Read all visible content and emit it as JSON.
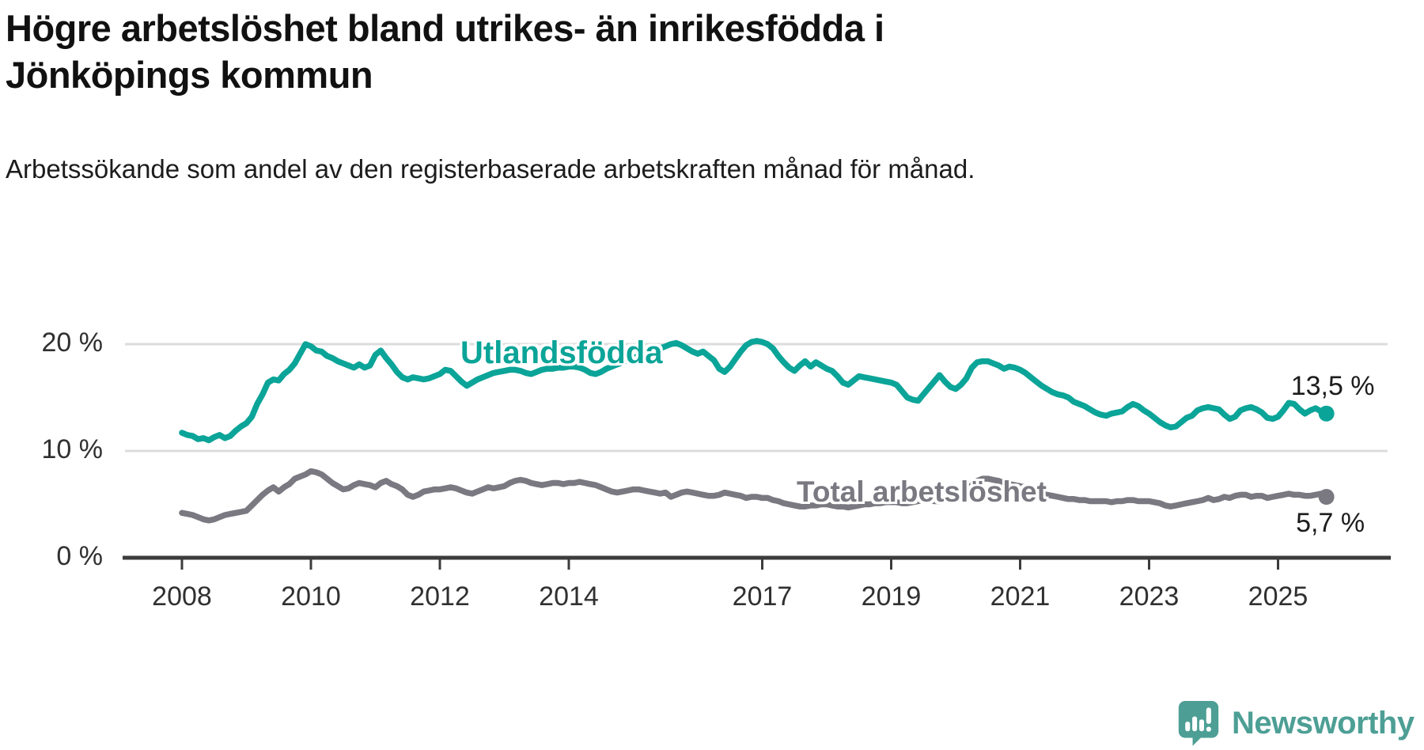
{
  "title": {
    "text": "Högre arbetslöshet bland utrikes- än inrikesfödda i Jönköpings kommun"
  },
  "subtitle": {
    "text": "Arbetssökande som andel av den registerbaserade arbetskraften månad för månad."
  },
  "chart_data": {
    "type": "line",
    "x_start": "2008-01",
    "x_end": "2025-10",
    "x_step_months": 1,
    "x_tick_years": [
      2008,
      2010,
      2012,
      2014,
      2017,
      2019,
      2021,
      2023,
      2025
    ],
    "y_ticks": [
      {
        "value": 0,
        "label": "0 %"
      },
      {
        "value": 10,
        "label": "10 %"
      },
      {
        "value": 20,
        "label": "20 %"
      }
    ],
    "ylim": [
      0,
      22
    ],
    "grid": "horizontal",
    "legend_position": "inline-labels",
    "colors": {
      "accent_teal": "#0ba498",
      "neutral_gray": "#7a7880",
      "gridline": "#dcdcdc",
      "axis": "#3c3c3c"
    },
    "series": [
      {
        "name": "Utlandsfödda",
        "color": "#0ba498",
        "end_label": "13,5 %",
        "end_value": 13.5,
        "values": [
          11.7,
          11.5,
          11.4,
          11.1,
          11.2,
          11.0,
          11.3,
          11.5,
          11.2,
          11.4,
          11.9,
          12.3,
          12.6,
          13.2,
          14.4,
          15.3,
          16.4,
          16.7,
          16.6,
          17.2,
          17.6,
          18.2,
          19.1,
          20.0,
          19.8,
          19.4,
          19.3,
          18.9,
          18.7,
          18.4,
          18.2,
          18.0,
          17.8,
          18.1,
          17.8,
          18.0,
          19.0,
          19.4,
          18.7,
          18.1,
          17.4,
          16.9,
          16.7,
          16.9,
          16.8,
          16.7,
          16.8,
          17.0,
          17.2,
          17.6,
          17.5,
          17.0,
          16.5,
          16.1,
          16.4,
          16.7,
          16.9,
          17.1,
          17.3,
          17.4,
          17.5,
          17.6,
          17.6,
          17.5,
          17.3,
          17.2,
          17.4,
          17.6,
          17.7,
          17.7,
          17.8,
          17.8,
          17.9,
          17.9,
          17.8,
          17.6,
          17.3,
          17.2,
          17.4,
          17.7,
          17.9,
          18.1,
          18.3,
          18.5,
          18.7,
          18.9,
          19.1,
          19.3,
          19.4,
          19.6,
          19.8,
          20.0,
          20.1,
          19.9,
          19.6,
          19.3,
          19.1,
          19.3,
          18.9,
          18.5,
          17.7,
          17.4,
          17.9,
          18.6,
          19.3,
          19.9,
          20.2,
          20.3,
          20.2,
          20.0,
          19.6,
          18.9,
          18.3,
          17.8,
          17.5,
          18.0,
          18.4,
          17.9,
          18.3,
          18.0,
          17.7,
          17.5,
          17.0,
          16.4,
          16.2,
          16.6,
          17.0,
          16.9,
          16.8,
          16.7,
          16.6,
          16.5,
          16.4,
          16.2,
          15.6,
          15.0,
          14.8,
          14.7,
          15.3,
          15.9,
          16.5,
          17.1,
          16.5,
          16.0,
          15.8,
          16.2,
          16.8,
          17.8,
          18.3,
          18.4,
          18.4,
          18.2,
          18.0,
          17.7,
          17.9,
          17.8,
          17.6,
          17.3,
          16.9,
          16.5,
          16.1,
          15.8,
          15.5,
          15.3,
          15.2,
          15.0,
          14.6,
          14.4,
          14.2,
          13.9,
          13.6,
          13.4,
          13.3,
          13.5,
          13.6,
          13.7,
          14.1,
          14.4,
          14.2,
          13.8,
          13.5,
          13.1,
          12.7,
          12.4,
          12.2,
          12.3,
          12.7,
          13.1,
          13.3,
          13.8,
          14.0,
          14.1,
          14.0,
          13.9,
          13.4,
          13.0,
          13.2,
          13.8,
          14.0,
          14.1,
          13.9,
          13.6,
          13.1,
          13.0,
          13.2,
          13.8,
          14.5,
          14.4,
          13.9,
          13.5,
          13.8,
          14.0,
          13.7,
          13.5
        ]
      },
      {
        "name": "Total arbetslöshet",
        "color": "#7a7880",
        "end_label": "5,7 %",
        "end_value": 5.7,
        "values": [
          4.2,
          4.1,
          4.0,
          3.8,
          3.6,
          3.5,
          3.6,
          3.8,
          4.0,
          4.1,
          4.2,
          4.3,
          4.4,
          4.9,
          5.4,
          5.9,
          6.3,
          6.6,
          6.2,
          6.6,
          6.9,
          7.4,
          7.6,
          7.8,
          8.1,
          8.0,
          7.8,
          7.4,
          7.0,
          6.7,
          6.4,
          6.5,
          6.8,
          7.0,
          6.9,
          6.8,
          6.6,
          7.0,
          7.2,
          6.9,
          6.7,
          6.4,
          5.9,
          5.7,
          5.9,
          6.2,
          6.3,
          6.4,
          6.4,
          6.5,
          6.6,
          6.5,
          6.3,
          6.1,
          6.0,
          6.2,
          6.4,
          6.6,
          6.5,
          6.6,
          6.7,
          7.0,
          7.2,
          7.3,
          7.2,
          7.0,
          6.9,
          6.8,
          6.9,
          7.0,
          7.0,
          6.9,
          7.0,
          7.0,
          7.1,
          7.0,
          6.9,
          6.8,
          6.6,
          6.4,
          6.2,
          6.1,
          6.2,
          6.3,
          6.4,
          6.4,
          6.3,
          6.2,
          6.1,
          6.0,
          6.1,
          5.7,
          5.9,
          6.1,
          6.2,
          6.1,
          6.0,
          5.9,
          5.8,
          5.8,
          5.9,
          6.1,
          6.0,
          5.9,
          5.8,
          5.6,
          5.7,
          5.7,
          5.6,
          5.6,
          5.4,
          5.3,
          5.1,
          5.0,
          4.9,
          4.8,
          4.8,
          4.9,
          4.9,
          5.0,
          5.0,
          4.9,
          4.8,
          4.8,
          4.7,
          4.8,
          4.9,
          5.0,
          5.0,
          5.1,
          5.1,
          5.2,
          5.2,
          5.2,
          5.1,
          5.1,
          5.2,
          5.3,
          5.4,
          5.4,
          5.3,
          5.3,
          5.4,
          5.5,
          5.6,
          5.8,
          6.2,
          6.8,
          7.2,
          7.4,
          7.4,
          7.3,
          7.2,
          7.0,
          6.9,
          6.8,
          6.7,
          6.6,
          6.4,
          6.2,
          6.0,
          5.9,
          5.8,
          5.7,
          5.6,
          5.5,
          5.5,
          5.4,
          5.4,
          5.3,
          5.3,
          5.3,
          5.3,
          5.2,
          5.3,
          5.3,
          5.4,
          5.4,
          5.3,
          5.3,
          5.3,
          5.2,
          5.1,
          4.9,
          4.8,
          4.9,
          5.0,
          5.1,
          5.2,
          5.3,
          5.4,
          5.6,
          5.4,
          5.5,
          5.7,
          5.6,
          5.8,
          5.9,
          5.9,
          5.7,
          5.8,
          5.8,
          5.6,
          5.7,
          5.8,
          5.9,
          6.0,
          5.9,
          5.9,
          5.8,
          5.8,
          5.9,
          6.0,
          5.7
        ]
      }
    ]
  },
  "footer": {
    "brand": "Newsworthy",
    "logo_color": "#4d9f95",
    "logo_icon": "bar-chart-speech-bubble"
  }
}
